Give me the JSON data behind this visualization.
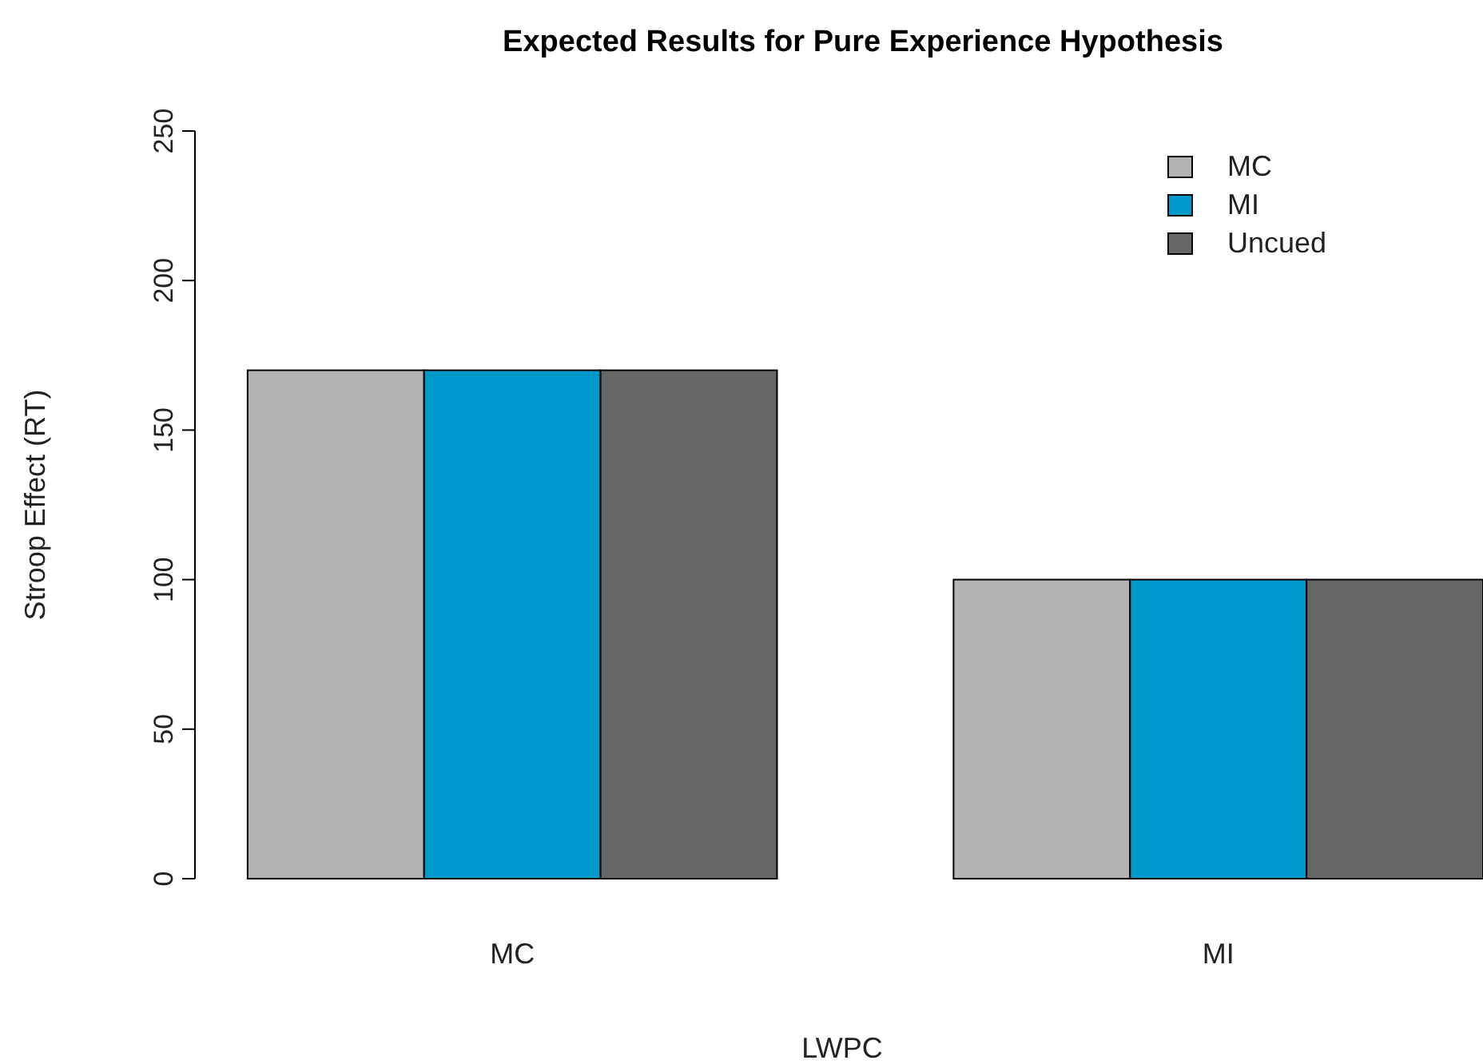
{
  "chart_data": {
    "type": "bar",
    "title": "Expected Results for Pure Experience Hypothesis",
    "xlabel": "LWPC",
    "ylabel": "Stroop Effect (RT)",
    "categories": [
      "MC",
      "MI"
    ],
    "series": [
      {
        "name": "MC",
        "color": "#b3b3b3",
        "values": [
          170,
          100
        ]
      },
      {
        "name": "MI",
        "color": "#0099cc",
        "values": [
          170,
          100
        ]
      },
      {
        "name": "Uncued",
        "color": "#666666",
        "values": [
          170,
          100
        ]
      }
    ],
    "ylim": [
      0,
      250
    ],
    "yticks": [
      0,
      50,
      100,
      150,
      200,
      250
    ],
    "grid": false,
    "legend": "top right"
  }
}
